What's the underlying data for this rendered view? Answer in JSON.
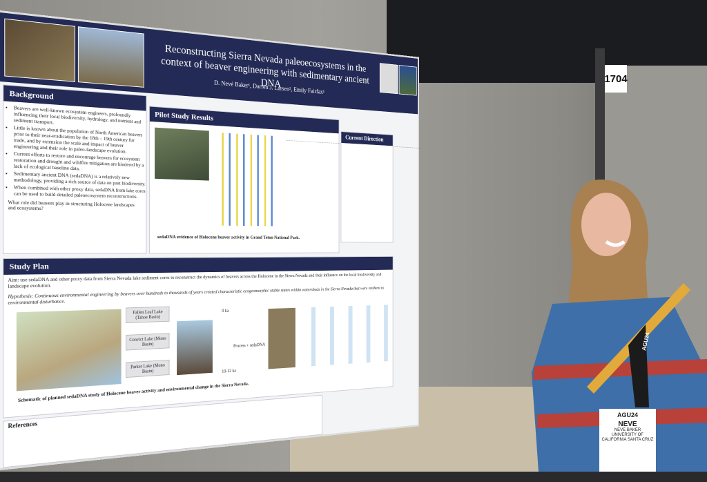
{
  "poster": {
    "title": "Reconstructing Sierra Nevada paleoecosystems in the context of beaver engineering with sedimentary ancient DNA",
    "authors": "D. Nevé Baker¹, Darren J. Larsen², Emily Fairfax¹",
    "background": {
      "heading": "Background",
      "bullets": [
        "Beavers are well-known ecosystem engineers, profoundly influencing their local biodiversity, hydrology, and nutrient and sediment transport.",
        "Little is known about the population of North American beavers prior to their near-eradication by the 18th – 19th century fur trade, and by extension the scale and impact of beaver engineering and their role in paleo-landscape evolution.",
        "Current efforts to restore and encourage beavers for ecosystem restoration and drought and wildfire mitigation are hindered by a lack of ecological baseline data.",
        "Sedimentary ancient DNA (sedaDNA) is a relatively new methodology, providing a rich source of data on past biodiversity.",
        "When combined with other proxy data, sedaDNA from lake cores can be used to build detailed paleoecosystem reconstructions."
      ],
      "question": "What role did beavers play in structuring Holocene landscapes and ecosystems?"
    },
    "pilot": {
      "heading": "Pilot Study Results",
      "caption": "sedaDNA evidence of Holocene beaver activity in Grand Teton National Park."
    },
    "current": {
      "heading": "Current Direction"
    },
    "plan": {
      "heading": "Study Plan",
      "aim": "Aim: use sedaDNA and other proxy data from Sierra Nevada lake sediment cores to reconstruct the dynamics of beavers across the Holocene in the Sierra Nevada and their influence on the local biodiversity and landscape evolution.",
      "hypothesis": "Hypothesis: Continuous environmental engineering by beavers over hundreds to thousands of years created characteristic ecogeomorphic stable states within watersheds in the Sierra Nevada that were resilient to environmental disturbance.",
      "lakes": [
        "Fallen Leaf Lake (Tahoe Basin)",
        "Convict Lake (Mono Basin)",
        "Parker Lake (Mono Basin)"
      ],
      "core_top": "0 ka",
      "core_bottom": "10-12 ka",
      "process": "Process + sedaDNA",
      "caption": "Schematic of planned sedaDNA study of Holocene beaver activity and environmental change in the Sierra Nevada."
    },
    "references": {
      "heading": "References"
    }
  },
  "booth": "1704",
  "badge": {
    "event": "AGU24",
    "first": "NEVE",
    "name": "NEVE BAKER",
    "affiliation": "UNIVERSITY OF CALIFORNIA SANTA CRUZ",
    "lanyard": "AGU24"
  }
}
